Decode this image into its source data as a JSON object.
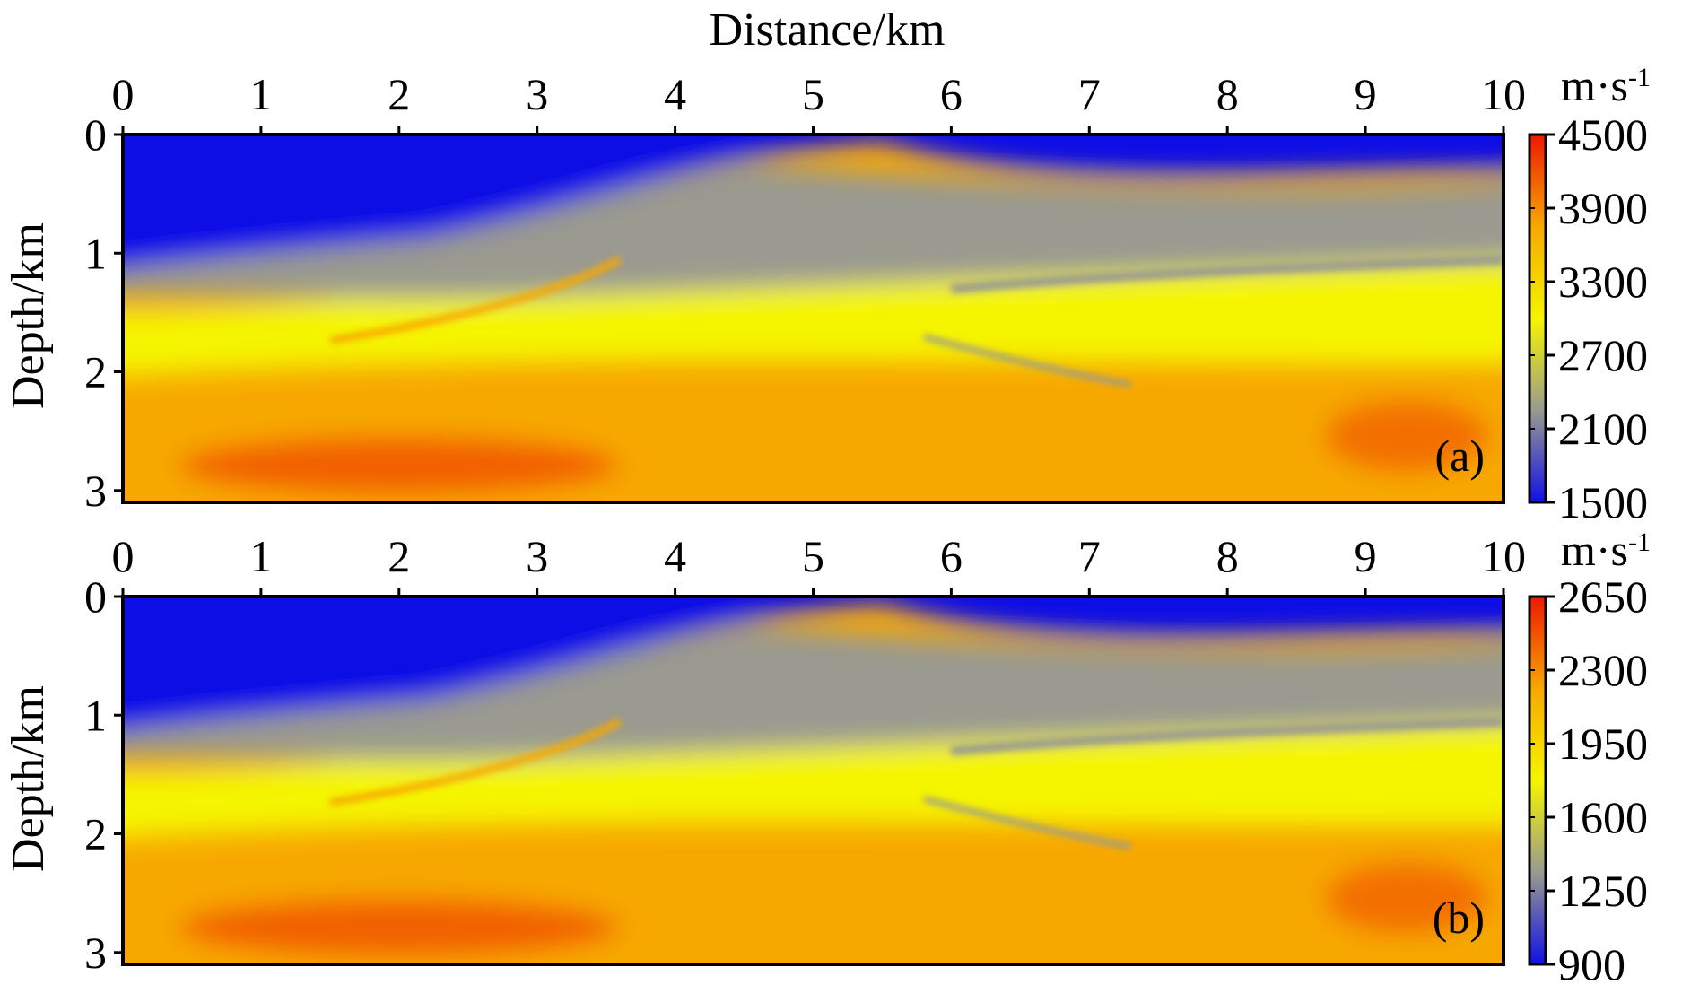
{
  "chart_data": [
    {
      "type": "heatmap",
      "panel_label": "(a)",
      "xlabel": "Distance/km",
      "ylabel": "Depth/km",
      "xlim": [
        0,
        10
      ],
      "ylim": [
        0,
        3.1
      ],
      "x_ticks": [
        "0",
        "1",
        "2",
        "3",
        "4",
        "5",
        "6",
        "7",
        "8",
        "9",
        "10"
      ],
      "y_ticks": [
        "0",
        "1",
        "2",
        "3"
      ],
      "colorbar": {
        "unit": "m·s",
        "unit_exponent": "-1",
        "min": 1500,
        "max": 4500,
        "ticks": [
          "1500",
          "2100",
          "2700",
          "3300",
          "3900",
          "4500"
        ],
        "colors": [
          "#1010e6",
          "#9a9a90",
          "#f5f500",
          "#f7a800",
          "#ee1800"
        ]
      }
    },
    {
      "type": "heatmap",
      "panel_label": "(b)",
      "xlabel": "",
      "ylabel": "Depth/km",
      "xlim": [
        0,
        10
      ],
      "ylim": [
        0,
        3.1
      ],
      "x_ticks": [
        "0",
        "1",
        "2",
        "3",
        "4",
        "5",
        "6",
        "7",
        "8",
        "9",
        "10"
      ],
      "y_ticks": [
        "0",
        "1",
        "2",
        "3"
      ],
      "colorbar": {
        "unit": "m·s",
        "unit_exponent": "-1",
        "min": 900,
        "max": 2650,
        "ticks": [
          "900",
          "1250",
          "1600",
          "1950",
          "2300",
          "2650"
        ],
        "colors": [
          "#1010e6",
          "#9a9a90",
          "#f5f500",
          "#f7a800",
          "#ee1800"
        ]
      }
    }
  ]
}
